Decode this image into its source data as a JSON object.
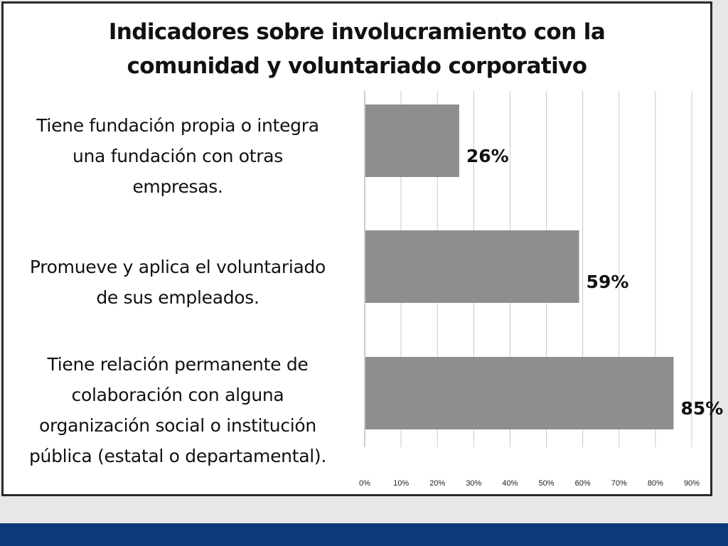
{
  "title": {
    "line1": "Indicadores sobre involucramiento con la",
    "line2": "comunidad y voluntariado corporativo"
  },
  "categories": [
    {
      "lines": [
        "Tiene fundación propia o integra",
        "una fundación con otras",
        "empresas."
      ]
    },
    {
      "lines": [
        "Promueve y aplica el voluntariado",
        "de sus empleados."
      ]
    },
    {
      "lines": [
        "Tiene relación permanente de",
        "colaboración con alguna",
        "organización social o institución",
        "pública (estatal o departamental)."
      ]
    }
  ],
  "colors": {
    "bar": "#8e8e8e",
    "grid": "#c8c8c8",
    "background": "#e6e7e9",
    "footer": "#0b3a7a",
    "text": "#111111"
  },
  "chart_data": {
    "type": "bar",
    "orientation": "horizontal",
    "title": "Indicadores sobre involucramiento con la comunidad y voluntariado corporativo",
    "categories": [
      "Tiene fundación propia o integra una fundación con otras empresas.",
      "Promueve y aplica el voluntariado de sus empleados.",
      "Tiene relación permanente de colaboración con alguna organización social o institución pública (estatal o departamental)."
    ],
    "values": [
      0.26,
      0.59,
      0.85
    ],
    "data_labels": [
      "26%",
      "59%",
      "85%"
    ],
    "xlim": [
      0,
      0.9
    ],
    "x_ticks": [
      "0%",
      "10%",
      "20%",
      "30%",
      "40%",
      "50%",
      "60%",
      "70%",
      "80%",
      "90%"
    ],
    "grid": true,
    "legend": "none"
  }
}
